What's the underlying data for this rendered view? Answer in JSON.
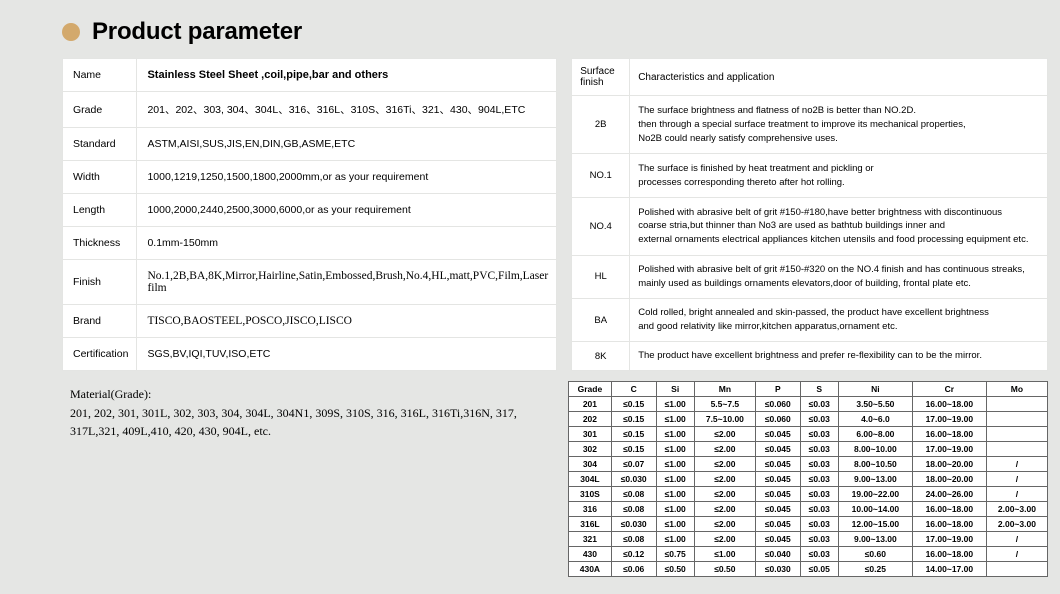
{
  "header": {
    "title": "Product parameter"
  },
  "params": [
    {
      "label": "Name",
      "value": "Stainless Steel Sheet ,coil,pipe,bar and others",
      "cls": "boldish"
    },
    {
      "label": "Grade",
      "value": "201、202、303, 304、304L、316、316L、310S、316Ti、321、430、904L,ETC",
      "cls": ""
    },
    {
      "label": "Standard",
      "value": "ASTM,AISI,SUS,JIS,EN,DIN,GB,ASME,ETC",
      "cls": ""
    },
    {
      "label": "Width",
      "value": "1000,1219,1250,1500,1800,2000mm,or as your requirement",
      "cls": ""
    },
    {
      "label": "Length",
      "value": "1000,2000,2440,2500,3000,6000,or as your requirement",
      "cls": ""
    },
    {
      "label": "Thickness",
      "value": "0.1mm-150mm",
      "cls": ""
    },
    {
      "label": "Finish",
      "value": "No.1,2B,BA,8K,Mirror,Hairline,Satin,Embossed,Brush,No.4,HL,matt,PVC,Film,Laser film",
      "cls": "serif"
    },
    {
      "label": "Brand",
      "value": "TISCO,BAOSTEEL,POSCO,JISCO,LISCO",
      "cls": "serif"
    },
    {
      "label": "Certification",
      "value": "SGS,BV,IQI,TUV,ISO,ETC",
      "cls": ""
    }
  ],
  "finish_header": {
    "c1": "Surface finish",
    "c2": "Characteristics and application"
  },
  "finish": [
    {
      "code": "2B",
      "desc": "The surface brightness and flatness of no2B is better than NO.2D.\n then through a special surface treatment to improve its mechanical properties,\nNo2B could nearly satisfy comprehensive uses."
    },
    {
      "code": "NO.1",
      "desc": "The surface is finished by heat treatment and pickling or\nprocesses corresponding thereto after hot rolling."
    },
    {
      "code": "NO.4",
      "desc": "Polished with abrasive belt of grit #150-#180,have better brightness with discontinuous\ncoarse stria,but thinner than No3 are used as bathtub buildings inner and\nexternal ornaments electrical appliances kitchen utensils and food processing equipment etc."
    },
    {
      "code": "HL",
      "desc": "Polished with abrasive belt of grit #150-#320 on the NO.4 finish and has continuous streaks,\n mainly used as buildings ornaments elevators,door of building, frontal plate etc."
    },
    {
      "code": "BA",
      "desc": "Cold rolled, bright annealed and skin-passed, the product have excellent brightness\nand good relativity like mirror,kitchen apparatus,ornament etc."
    },
    {
      "code": "8K",
      "desc": "The product have excellent brightness and prefer re-flexibility can to be the mirror."
    }
  ],
  "material_note": {
    "title": "Material(Grade):",
    "body": "201, 202, 301, 301L, 302, 303, 304, 304L, 304N1, 309S, 310S, 316, 316L, 316Ti,316N, 317, 317L,321, 409L,410, 420, 430, 904L, etc."
  },
  "chem_header": [
    "Grade",
    "C",
    "Si",
    "Mn",
    "P",
    "S",
    "Ni",
    "Cr",
    "Mo"
  ],
  "chem_rows": [
    [
      "201",
      "≤0.15",
      "≤1.00",
      "5.5~7.5",
      "≤0.060",
      "≤0.03",
      "3.50~5.50",
      "16.00~18.00",
      ""
    ],
    [
      "202",
      "≤0.15",
      "≤1.00",
      "7.5~10.00",
      "≤0.060",
      "≤0.03",
      "4.0~6.0",
      "17.00~19.00",
      ""
    ],
    [
      "301",
      "≤0.15",
      "≤1.00",
      "≤2.00",
      "≤0.045",
      "≤0.03",
      "6.00~8.00",
      "16.00~18.00",
      ""
    ],
    [
      "302",
      "≤0.15",
      "≤1.00",
      "≤2.00",
      "≤0.045",
      "≤0.03",
      "8.00~10.00",
      "17.00~19.00",
      ""
    ],
    [
      "304",
      "≤0.07",
      "≤1.00",
      "≤2.00",
      "≤0.045",
      "≤0.03",
      "8.00~10.50",
      "18.00~20.00",
      "/"
    ],
    [
      "304L",
      "≤0.030",
      "≤1.00",
      "≤2.00",
      "≤0.045",
      "≤0.03",
      "9.00~13.00",
      "18.00~20.00",
      "/"
    ],
    [
      "310S",
      "≤0.08",
      "≤1.00",
      "≤2.00",
      "≤0.045",
      "≤0.03",
      "19.00~22.00",
      "24.00~26.00",
      "/"
    ],
    [
      "316",
      "≤0.08",
      "≤1.00",
      "≤2.00",
      "≤0.045",
      "≤0.03",
      "10.00~14.00",
      "16.00~18.00",
      "2.00~3.00"
    ],
    [
      "316L",
      "≤0.030",
      "≤1.00",
      "≤2.00",
      "≤0.045",
      "≤0.03",
      "12.00~15.00",
      "16.00~18.00",
      "2.00~3.00"
    ],
    [
      "321",
      "≤0.08",
      "≤1.00",
      "≤2.00",
      "≤0.045",
      "≤0.03",
      "9.00~13.00",
      "17.00~19.00",
      "/"
    ],
    [
      "430",
      "≤0.12",
      "≤0.75",
      "≤1.00",
      "≤0.040",
      "≤0.03",
      "≤0.60",
      "16.00~18.00",
      "/"
    ],
    [
      "430A",
      "≤0.06",
      "≤0.50",
      "≤0.50",
      "≤0.030",
      "≤0.05",
      "≤0.25",
      "14.00~17.00",
      ""
    ]
  ]
}
